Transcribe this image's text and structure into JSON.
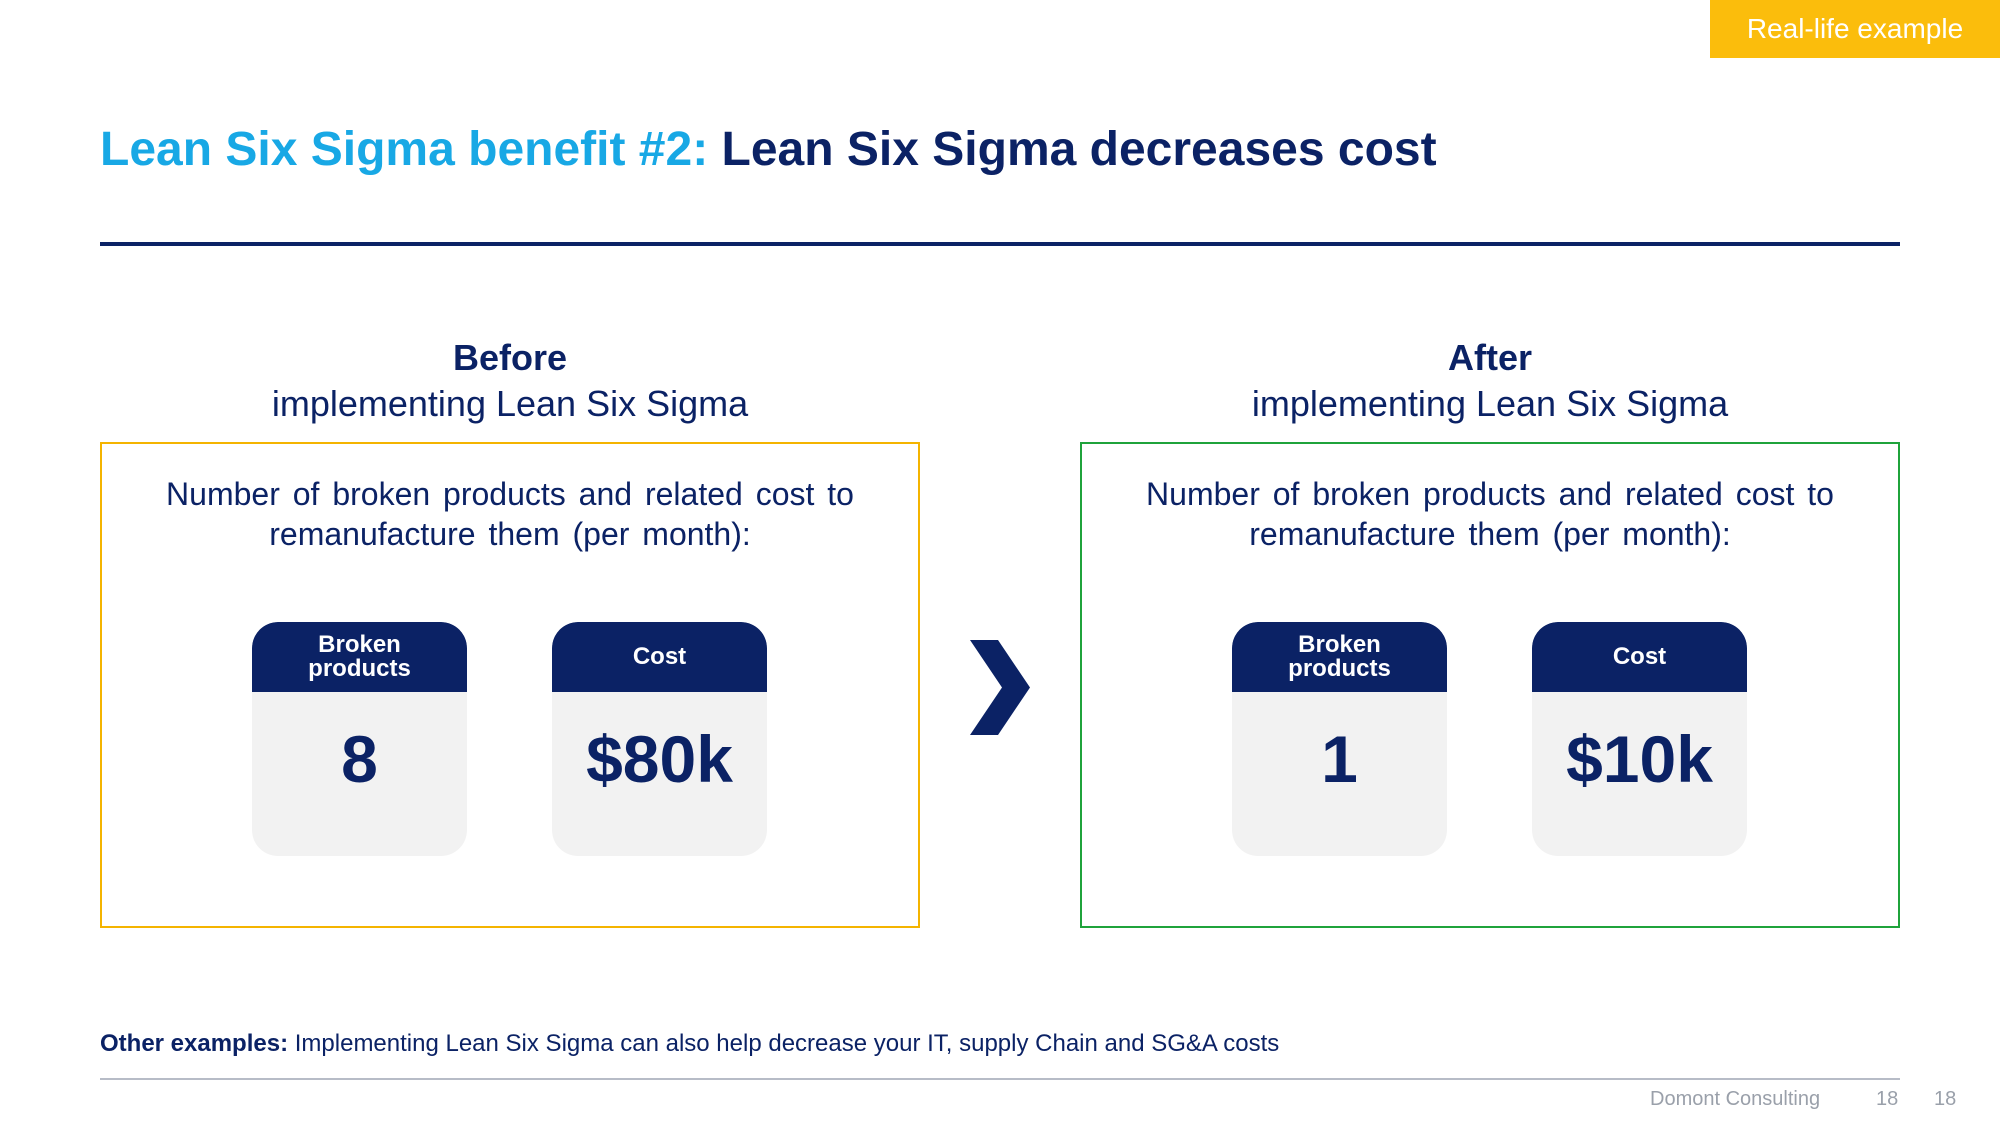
{
  "tag": {
    "label": "Real-life example",
    "color": "#fbbd0c"
  },
  "title": {
    "prefix": "Lean Six Sigma benefit #2:",
    "main": "Lean Six Sigma decreases cost",
    "prefix_color": "#18a8e5",
    "main_color": "#0b2265"
  },
  "before": {
    "heading": "Before",
    "subheading": "implementing Lean Six Sigma",
    "border_color": "#f4b400",
    "description": "Number of broken products and related cost to remanufacture them (per month):",
    "cards": [
      {
        "label": "Broken products",
        "value": "8"
      },
      {
        "label": "Cost",
        "value": "$80k"
      }
    ]
  },
  "after": {
    "heading": "After",
    "subheading": "implementing Lean Six Sigma",
    "border_color": "#1fa33b",
    "description": "Number of broken products and related cost to remanufacture them (per month):",
    "cards": [
      {
        "label": "Broken products",
        "value": "1"
      },
      {
        "label": "Cost",
        "value": "$10k"
      }
    ]
  },
  "arrow_icon": "chevron-right-icon",
  "other_examples": {
    "lead": "Other examples:",
    "text": "Implementing Lean Six Sigma can also help decrease your IT, supply Chain and SG&A costs"
  },
  "footer": {
    "company": "Domont Consulting",
    "page_a": "18",
    "page_b": "18"
  }
}
